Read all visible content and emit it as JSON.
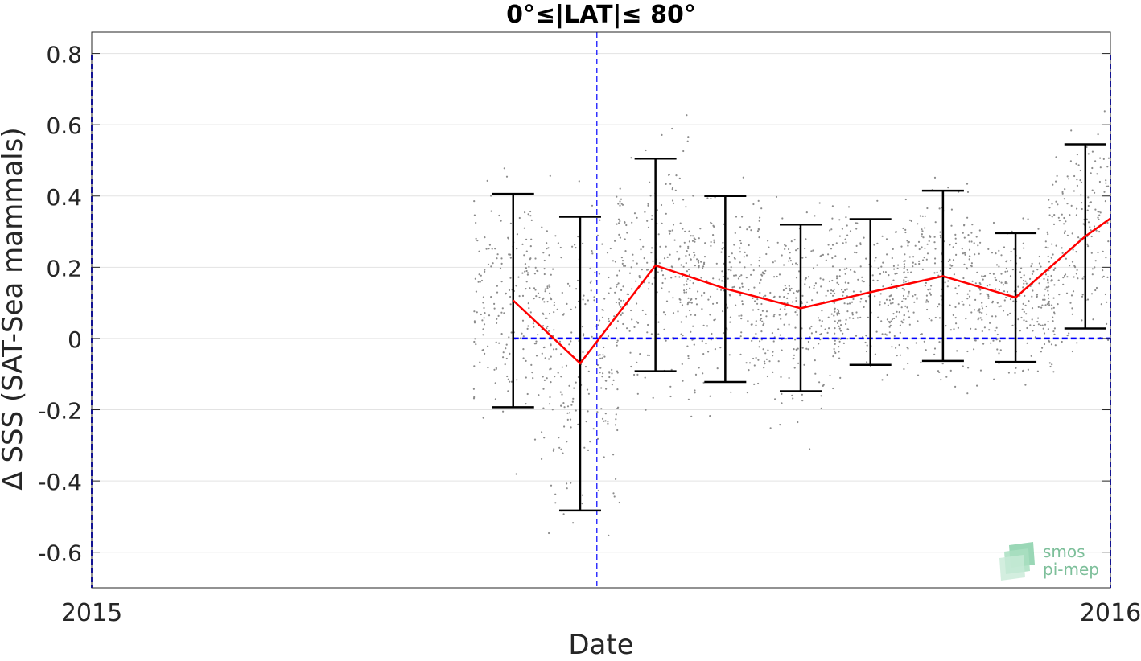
{
  "chart_data": {
    "type": "line",
    "title": "0°≤|LAT|≤ 80°",
    "xlabel": "Date",
    "ylabel": "Δ SSS (SAT-Sea mammals)",
    "xlim": [
      "2015-01-01",
      "2016-01-01"
    ],
    "ylim": [
      -0.7,
      0.86
    ],
    "x_ticks": [
      "2015",
      "2016"
    ],
    "y_ticks": [
      -0.6,
      -0.4,
      -0.2,
      0,
      0.2,
      0.4,
      0.6,
      0.8
    ],
    "y_tick_labels": [
      "-0.6",
      "-0.4",
      "-0.2",
      "0",
      "0.2",
      "0.4",
      "0.6",
      "0.8"
    ],
    "grid": "horizontal",
    "reference_line": {
      "y": 0,
      "x_start": "2015-06-01",
      "x_end": "2016-01-01",
      "color": "#0000ff",
      "style": "dashed"
    },
    "vertical_marker": {
      "x": "2015-07-01",
      "color": "#0000ff",
      "style": "dashed"
    },
    "series": [
      {
        "style": "red-line",
        "color": "#ff0000",
        "x": [
          "2015-06-01",
          "2015-06-25",
          "2015-07-22",
          "2015-08-16",
          "2015-09-12",
          "2015-10-07",
          "2015-11-02",
          "2015-11-28",
          "2015-12-23",
          "2016-01-01"
        ],
        "y": [
          0.107,
          -0.07,
          0.205,
          0.14,
          0.085,
          0.13,
          0.175,
          0.115,
          0.287,
          0.337
        ]
      }
    ],
    "error_bars": [
      {
        "x": "2015-06-01",
        "low": -0.193,
        "high": 0.406
      },
      {
        "x": "2015-06-25",
        "low": -0.483,
        "high": 0.342
      },
      {
        "x": "2015-07-22",
        "low": -0.092,
        "high": 0.505
      },
      {
        "x": "2015-08-16",
        "low": -0.122,
        "high": 0.4
      },
      {
        "x": "2015-09-12",
        "low": -0.148,
        "high": 0.32
      },
      {
        "x": "2015-10-07",
        "low": -0.074,
        "high": 0.335
      },
      {
        "x": "2015-11-02",
        "low": -0.063,
        "high": 0.415
      },
      {
        "x": "2015-11-28",
        "low": -0.066,
        "high": 0.296
      },
      {
        "x": "2015-12-23",
        "low": 0.028,
        "high": 0.545
      }
    ],
    "scatter_color": "#8c8c8c",
    "colors": {
      "mean_line": "#ff0000",
      "error_bars": "#000000",
      "reference": "#0000ff",
      "scatter": "#8c8c8c",
      "logo": "#7dbf9a"
    }
  },
  "logo": {
    "line1": "smos",
    "line2": "pi-mep"
  }
}
